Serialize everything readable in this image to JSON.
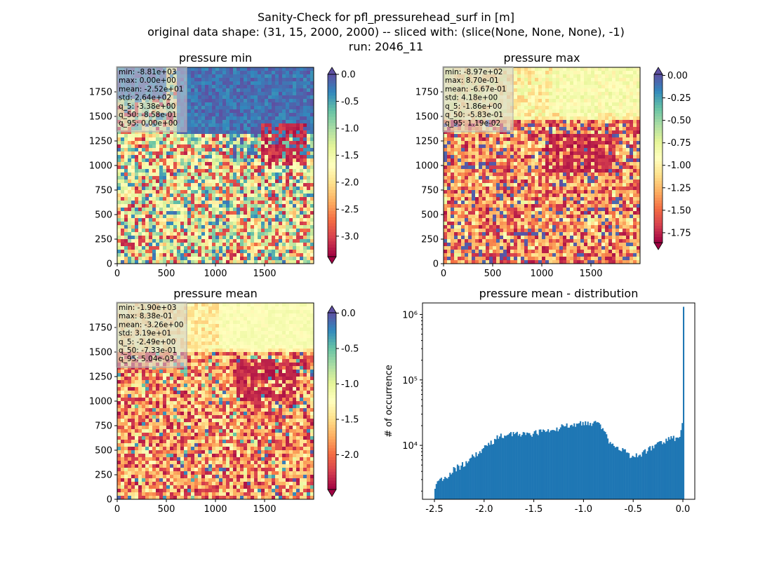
{
  "figure": {
    "suptitle": [
      "Sanity-Check for pfl_pressurehead_surf in [m]",
      "original data shape: (31, 15, 2000, 2000) -- sliced with: (slice(None, None, None), -1)",
      "run: 2046_11"
    ]
  },
  "colormap": {
    "name": "Spectral",
    "stops": [
      "#9e0142",
      "#d53e4f",
      "#f46d43",
      "#fdae61",
      "#fee08b",
      "#ffffbf",
      "#e6f598",
      "#abdda4",
      "#66c2a5",
      "#3288bd",
      "#5e4fa2"
    ]
  },
  "chart_data": [
    {
      "type": "heatmap",
      "title": "pressure min",
      "x_ticks": [
        "0",
        "500",
        "1000",
        "1500"
      ],
      "y_ticks": [
        "0",
        "250",
        "500",
        "750",
        "1000",
        "1250",
        "1500",
        "1750"
      ],
      "colorbar_ticks": [
        "0.0",
        "-0.5",
        "-1.0",
        "-1.5",
        "-2.0",
        "-2.5",
        "-3.0"
      ],
      "colorbar_range": [
        -3.38,
        0.0
      ],
      "colorbar_extend": "both",
      "stats": [
        "min: -8.81e+03",
        "max: 0.00e+00",
        "mean: -2.52e+01",
        "std: 2.64e+02",
        "q_5: -3.38e+00",
        "q_50: -8.58e-01",
        "q_95: 0.00e+00"
      ]
    },
    {
      "type": "heatmap",
      "title": "pressure max",
      "x_ticks": [
        "0",
        "500",
        "1000",
        "1500"
      ],
      "y_ticks": [
        "0",
        "250",
        "500",
        "750",
        "1000",
        "1250",
        "1500",
        "1750"
      ],
      "colorbar_ticks": [
        "0.00",
        "-0.25",
        "-0.50",
        "-0.75",
        "-1.00",
        "-1.25",
        "-1.50",
        "-1.75"
      ],
      "colorbar_range": [
        -1.86,
        0.0119
      ],
      "colorbar_extend": "both",
      "stats": [
        "min: -8.97e+02",
        "max: 8.70e-01",
        "mean: -6.67e-01",
        "std: 4.18e+00",
        "q_5: -1.86e+00",
        "q_50: -5.83e-01",
        "q_95: 1.19e-02"
      ]
    },
    {
      "type": "heatmap",
      "title": "pressure mean",
      "x_ticks": [
        "0",
        "500",
        "1000",
        "1500"
      ],
      "y_ticks": [
        "0",
        "250",
        "500",
        "750",
        "1000",
        "1250",
        "1500",
        "1750"
      ],
      "colorbar_ticks": [
        "0.0",
        "-0.5",
        "-1.0",
        "-1.5",
        "-2.0"
      ],
      "colorbar_range": [
        -2.49,
        0.00504
      ],
      "colorbar_extend": "both",
      "stats": [
        "min: -1.90e+03",
        "max: 8.38e-01",
        "mean: -3.26e+00",
        "std: 3.19e+01",
        "q_5: -2.49e+00",
        "q_50: -7.33e-01",
        "q_95: 5.04e-03"
      ]
    },
    {
      "type": "bar",
      "title": "pressure mean - distribution",
      "xlabel": "",
      "ylabel": "# of occurrence",
      "x_ticks": [
        "-2.5",
        "-2.0",
        "-1.5",
        "-1.0",
        "-0.5",
        "0.0"
      ],
      "y_ticks": [
        "10⁴",
        "10⁵",
        "10⁶"
      ],
      "y_scale": "log",
      "xlim": [
        -2.62,
        0.12
      ],
      "ylim": [
        1500,
        1500000
      ],
      "color": "#1f77b4",
      "bin_width": 0.0125,
      "x": [
        -2.5,
        -2.45,
        -2.4,
        -2.35,
        -2.3,
        -2.25,
        -2.2,
        -2.15,
        -2.1,
        -2.05,
        -2.0,
        -1.95,
        -1.9,
        -1.85,
        -1.8,
        -1.75,
        -1.7,
        -1.65,
        -1.6,
        -1.55,
        -1.5,
        -1.45,
        -1.4,
        -1.35,
        -1.3,
        -1.25,
        -1.2,
        -1.15,
        -1.1,
        -1.05,
        -1.0,
        -0.95,
        -0.9,
        -0.85,
        -0.8,
        -0.75,
        -0.7,
        -0.65,
        -0.6,
        -0.55,
        -0.5,
        -0.45,
        -0.4,
        -0.35,
        -0.3,
        -0.25,
        -0.2,
        -0.15,
        -0.1,
        -0.05,
        -0.02,
        -0.01,
        0.0
      ],
      "values": [
        2400,
        2800,
        3200,
        3700,
        4400,
        4800,
        5300,
        6000,
        7000,
        8000,
        9200,
        10500,
        12000,
        13500,
        14500,
        15000,
        15200,
        15000,
        14500,
        15000,
        15500,
        16000,
        16500,
        17000,
        17500,
        18000,
        19500,
        20500,
        21500,
        22500,
        23000,
        21500,
        23500,
        20000,
        15500,
        12000,
        10000,
        8800,
        8000,
        7200,
        6800,
        7100,
        7700,
        8800,
        9500,
        10500,
        11000,
        12000,
        12800,
        14000,
        16000,
        24000,
        1200000
      ]
    }
  ]
}
